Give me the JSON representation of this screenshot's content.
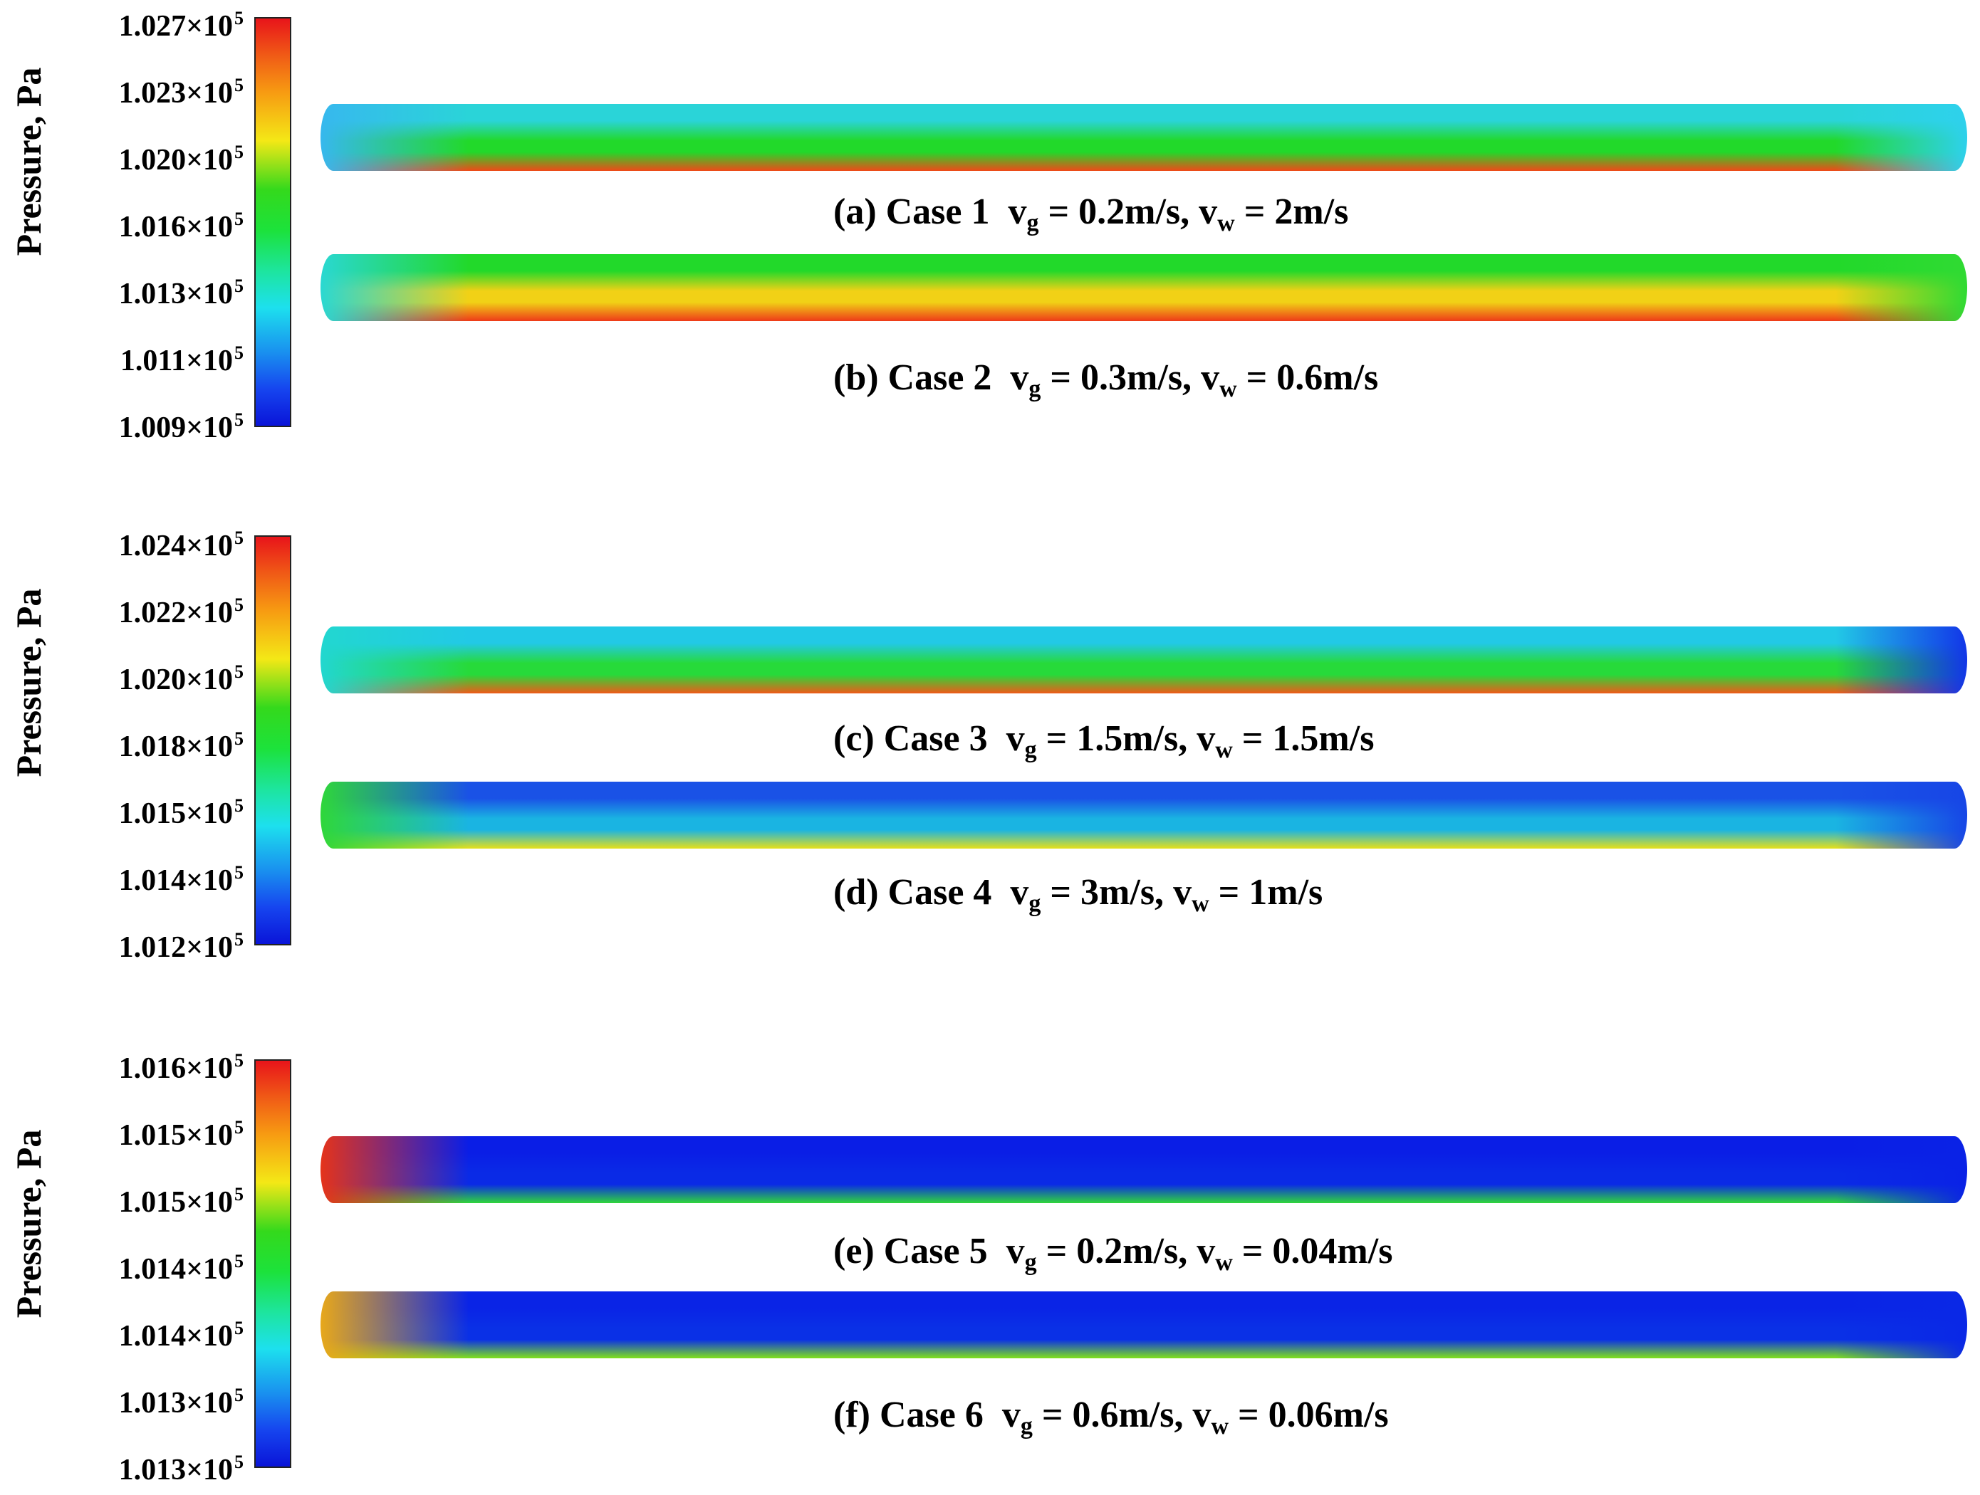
{
  "chart_data": [
    {
      "type": "heatmap",
      "colorbar": {
        "label": "Pressure, Pa",
        "ticks": [
          "1.027×10",
          "1.023×10",
          "1.020×10",
          "1.016×10",
          "1.013×10",
          "1.011×10",
          "1.009×10"
        ],
        "exponent": "5",
        "range": [
          100900,
          102700
        ]
      },
      "panels": [
        {
          "caption": {
            "prefix": "(a) Case 1",
            "vg_label": "v",
            "vg_sub": "g",
            "vg_value": " = 0.2m/s, ",
            "vw_label": "v",
            "vw_sub": "w",
            "vw_value": " = 2m/s"
          },
          "colors": {
            "top": "#2ad4d8",
            "middle": "#22d92a",
            "bottom": "#ef4a18",
            "inlet": "#37b8ee",
            "outlet": "#2ed1ec"
          }
        },
        {
          "caption": {
            "prefix": "(b) Case 2",
            "vg_label": "v",
            "vg_sub": "g",
            "vg_value": " = 0.3m/s, ",
            "vw_label": "v",
            "vw_sub": "w",
            "vw_value": " = 0.6m/s"
          },
          "colors": {
            "top": "#22d92a",
            "middle": "#f1d116",
            "bottom": "#ee3a18",
            "inlet": "#2ad8d2",
            "outlet": "#30da33"
          }
        }
      ]
    },
    {
      "type": "heatmap",
      "colorbar": {
        "label": "Pressure, Pa",
        "ticks": [
          "1.024×10",
          "1.022×10",
          "1.020×10",
          "1.018×10",
          "1.015×10",
          "1.014×10",
          "1.012×10"
        ],
        "exponent": "5",
        "range": [
          101200,
          102400
        ]
      },
      "panels": [
        {
          "caption": {
            "prefix": "(c) Case 3",
            "vg_label": "v",
            "vg_sub": "g",
            "vg_value": " = 1.5m/s, ",
            "vw_label": "v",
            "vw_sub": "w",
            "vw_value": " = 1.5m/s"
          },
          "colors": {
            "top": "#22c9e6",
            "middle": "#27da3a",
            "bottom": "#ef5a18",
            "inlet": "#22d7d0",
            "outlet": "#1236e8"
          }
        },
        {
          "caption": {
            "prefix": "(d) Case 4",
            "vg_label": "v",
            "vg_sub": "g",
            "vg_value": " = 3m/s, ",
            "vw_label": "v",
            "vw_sub": "w",
            "vw_value": " = 1m/s"
          },
          "colors": {
            "top": "#1a52e6",
            "middle": "#1ab4e2",
            "bottom": "#e7e018",
            "inlet": "#2fd73a",
            "outlet": "#1746e6"
          }
        }
      ]
    },
    {
      "type": "heatmap",
      "colorbar": {
        "label": "Pressure, Pa",
        "ticks": [
          "1.016×10",
          "1.015×10",
          "1.015×10",
          "1.014×10",
          "1.014×10",
          "1.013×10",
          "1.013×10"
        ],
        "exponent": "5",
        "range": [
          101300,
          101600
        ]
      },
      "panels": [
        {
          "caption": {
            "prefix": "(e) Case 5",
            "vg_label": "v",
            "vg_sub": "g",
            "vg_value": " = 0.2m/s, ",
            "vw_label": "v",
            "vw_sub": "w",
            "vw_value": " = 0.04m/s"
          },
          "colors": {
            "top": "#0a1ee6",
            "middle": "#0a2ae6",
            "bottom": "#2fd73a",
            "inlet": "#e5331a",
            "outlet": "#0a22e6"
          }
        },
        {
          "caption": {
            "prefix": "(f) Case 6",
            "vg_label": "v",
            "vg_sub": "g",
            "vg_value": " = 0.6m/s, ",
            "vw_label": "v",
            "vw_sub": "w",
            "vw_value": " = 0.06m/s"
          },
          "colors": {
            "top": "#0a24e6",
            "middle": "#0a30e6",
            "bottom": "#7fe21a",
            "inlet": "#e8a81a",
            "outlet": "#0a28e6"
          }
        }
      ]
    }
  ]
}
